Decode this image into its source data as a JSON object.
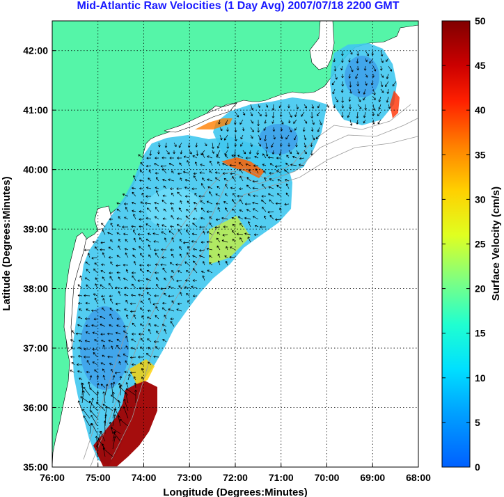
{
  "title": "Mid-Atlantic Raw Velocities (1 Day Avg) 2007/07/18 2200 GMT",
  "xlabel": "Longitude (Degrees:Minutes)",
  "ylabel": "Latitude (Degrees:Minutes)",
  "colorbar_label": "Surface Velocity (cm/s)",
  "x_ticks": [
    "76:00",
    "75:00",
    "74:00",
    "73:00",
    "72:00",
    "71:00",
    "70:00",
    "69:00",
    "68:00"
  ],
  "y_ticks": [
    "35:00",
    "36:00",
    "37:00",
    "38:00",
    "39:00",
    "40:00",
    "41:00",
    "42:00"
  ],
  "colorbar_ticks": [
    "0",
    "5",
    "10",
    "15",
    "20",
    "25",
    "30",
    "35",
    "40",
    "45",
    "50"
  ],
  "colors": {
    "land": "#55f5a8",
    "title": "#1a1aff",
    "grid": "#000000",
    "arrow": "#000000",
    "bathymetry": "#999999"
  },
  "map_extent": {
    "lon": [
      -76,
      -68
    ],
    "lat": [
      35,
      42.5
    ]
  },
  "colorbar_range": [
    0,
    50
  ]
}
